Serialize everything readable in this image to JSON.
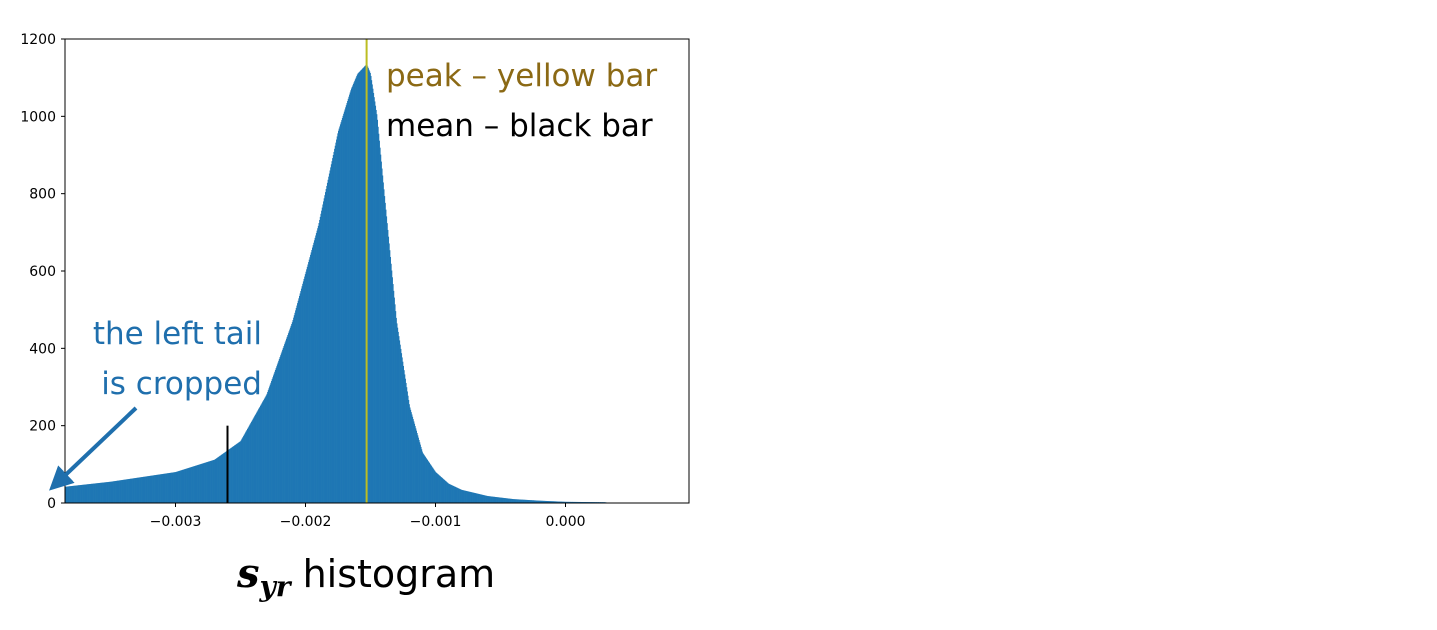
{
  "chart_data": {
    "type": "bar",
    "title": "",
    "xlabel": "",
    "ylabel": "",
    "xlim": [
      -0.00385,
      0.00095
    ],
    "ylim": [
      0,
      1200
    ],
    "x_ticks": [
      -0.003,
      -0.002,
      -0.001,
      0.0
    ],
    "x_tick_labels": [
      "−0.003",
      "−0.002",
      "−0.001",
      "0.000"
    ],
    "y_ticks": [
      0,
      200,
      400,
      600,
      800,
      1000,
      1200
    ],
    "y_tick_labels": [
      "0",
      "200",
      "400",
      "600",
      "800",
      "1000",
      "1200"
    ],
    "grid": false,
    "bar_color": "#1f77b4",
    "histogram": {
      "bin_edges_start": -0.00385,
      "bin_width": 5e-06,
      "x": [
        -0.00385,
        -0.0035,
        -0.003,
        -0.0027,
        -0.0025,
        -0.0023,
        -0.0021,
        -0.0019,
        -0.00175,
        -0.00165,
        -0.0016,
        -0.00153,
        -0.0015,
        -0.00145,
        -0.0014,
        -0.0013,
        -0.0012,
        -0.0011,
        -0.001,
        -0.0009,
        -0.0008,
        -0.0006,
        -0.0004,
        -0.0002,
        0.0,
        0.0003,
        0.00035
      ],
      "counts": [
        42,
        55,
        80,
        112,
        160,
        280,
        470,
        720,
        960,
        1070,
        1110,
        1135,
        1110,
        1000,
        820,
        470,
        250,
        130,
        80,
        50,
        34,
        18,
        10,
        6,
        3,
        2,
        0
      ]
    },
    "vlines": [
      {
        "x": -0.00153,
        "color": "#bcbd22",
        "ymin": 0,
        "ymax": 1200
      },
      {
        "x": -0.0026,
        "color": "#000000",
        "ymin": 0,
        "ymax": 200
      }
    ],
    "annotations": [
      {
        "text": "peak – yellow bar",
        "color": "#8b6914"
      },
      {
        "text": "mean – black bar",
        "color": "#000000"
      },
      {
        "text_lines": [
          "the left tail",
          "is cropped"
        ],
        "color": "#1f6fad"
      }
    ]
  },
  "caption": {
    "var": "s",
    "sub": "yr",
    "text": "histogram"
  }
}
